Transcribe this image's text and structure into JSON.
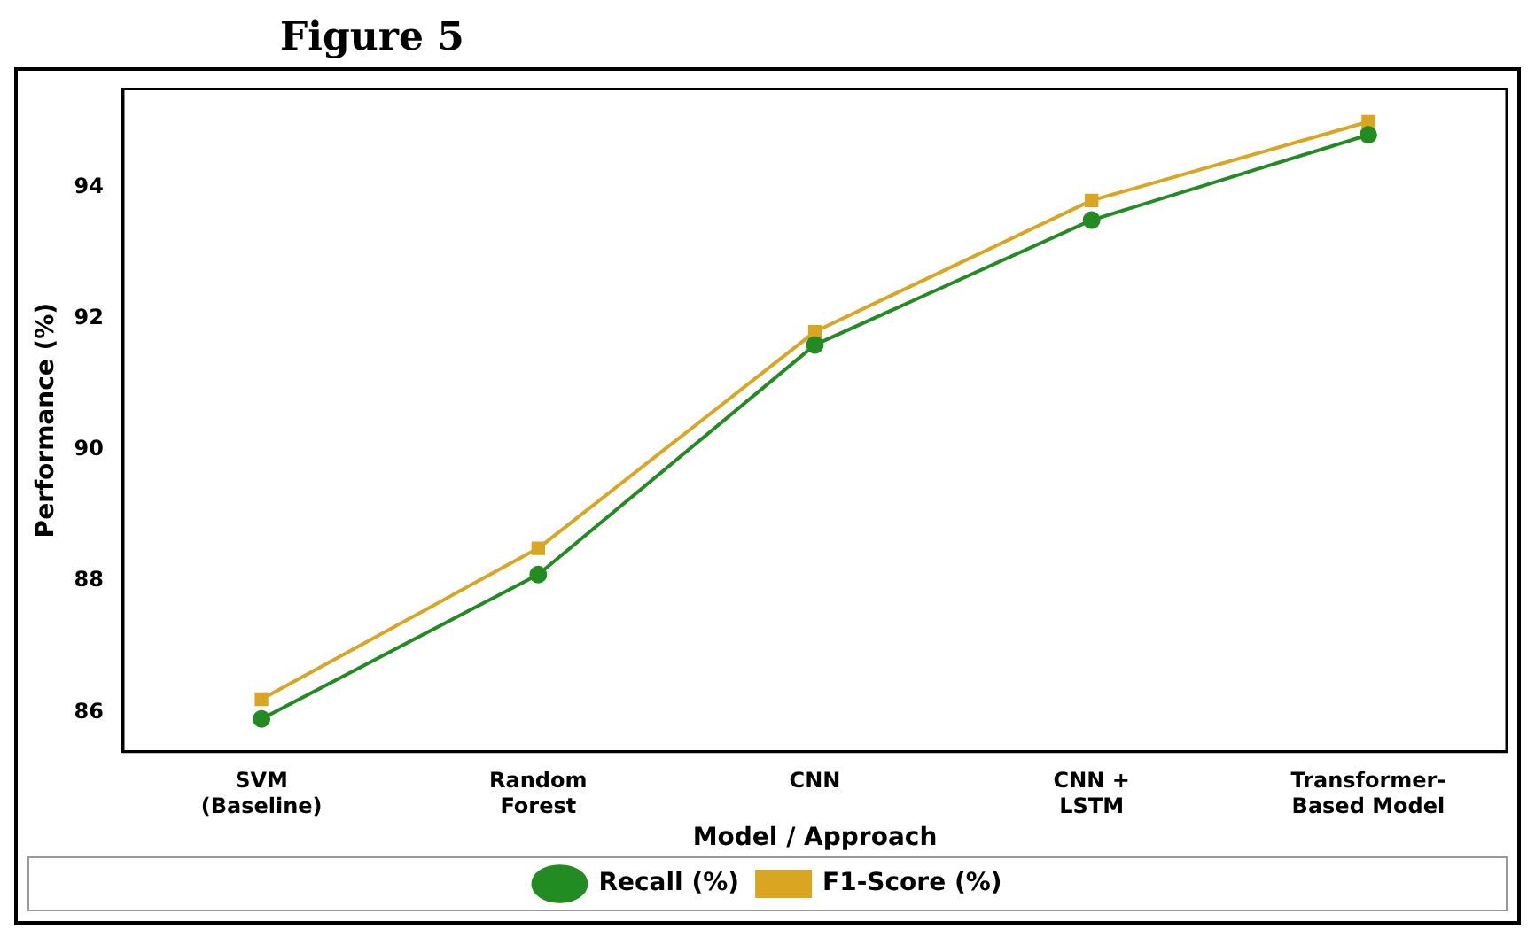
{
  "chart_data": {
    "type": "line",
    "title": "Figure 5",
    "xlabel": "Model / Approach",
    "ylabel": "Performance (%)",
    "categories": [
      "SVM\n(Baseline)",
      "Random\nForest",
      "CNN",
      "CNN +\nLSTM",
      "Transformer-\nBased Model"
    ],
    "series": [
      {
        "name": "Recall (%)",
        "color": "#228b22",
        "values": [
          85.9,
          88.1,
          91.6,
          93.5,
          94.8
        ],
        "marker": "circle"
      },
      {
        "name": "F1-Score (%)",
        "color": "#daa520",
        "values": [
          86.2,
          88.5,
          91.8,
          93.8,
          95.0
        ],
        "marker": "square"
      }
    ],
    "ylim": [
      85.4,
      95.5
    ],
    "yticks": [
      86,
      88,
      90,
      92,
      94
    ],
    "grid": false,
    "legend": "bottom",
    "line_style": "solid"
  }
}
